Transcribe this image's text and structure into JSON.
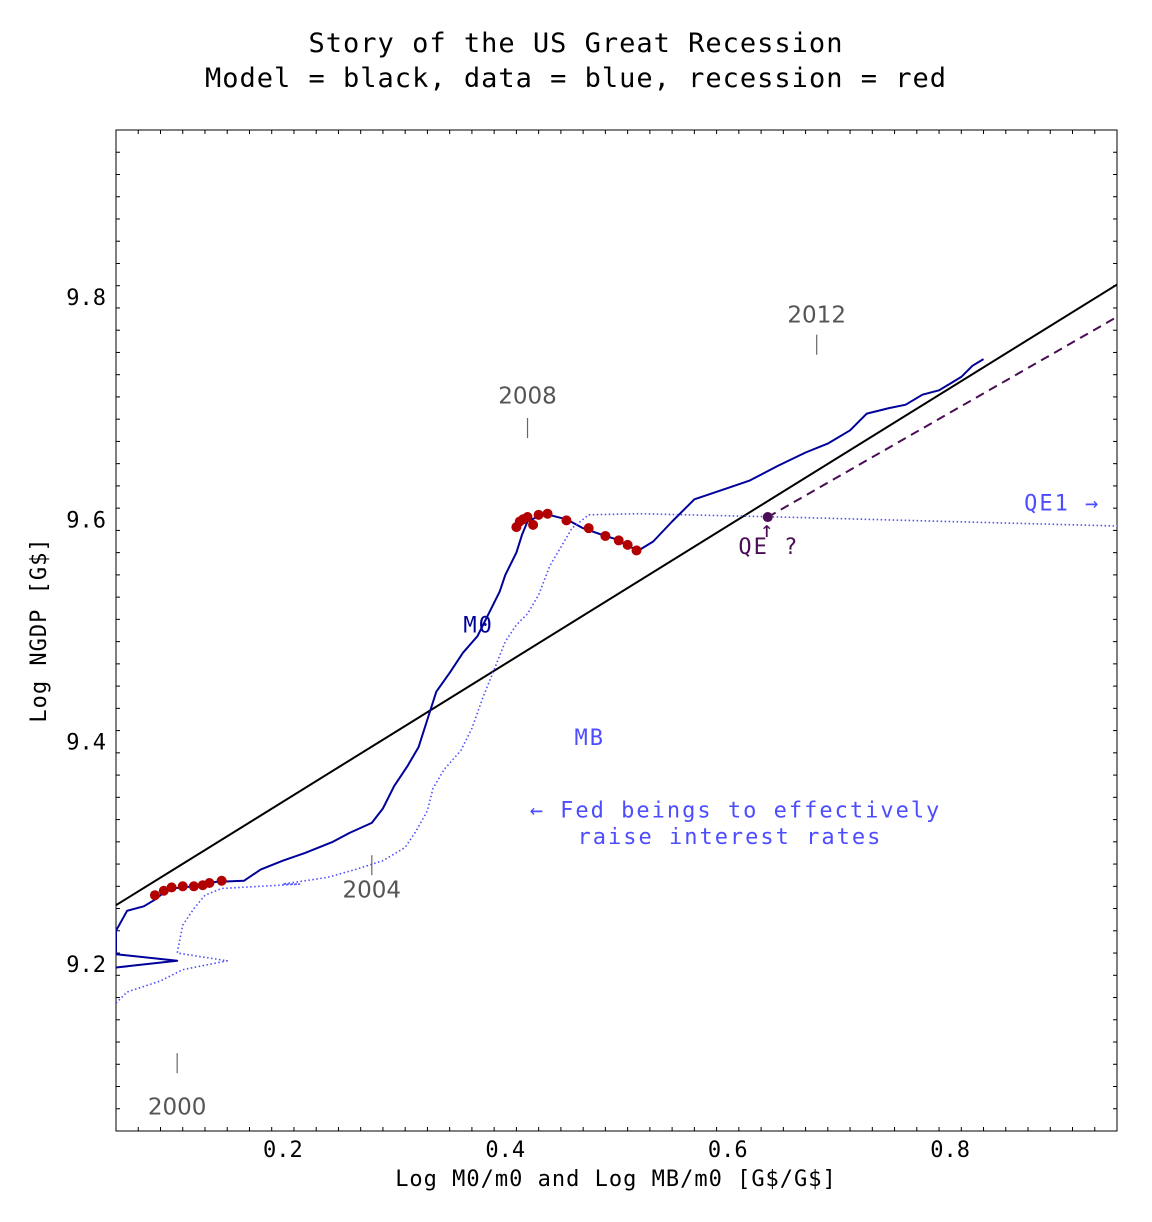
{
  "title_line1": "Story of the US Great Recession",
  "title_line2": "Model = black, data = blue, recession = red",
  "chart_data": {
    "type": "line",
    "xlabel": "Log M0/m0 and Log MB/m0 [G$/G$]",
    "ylabel": "Log NGDP [G$]",
    "xlim": [
      0.05,
      0.95
    ],
    "ylim": [
      9.05,
      9.95
    ],
    "x_ticks": [
      0.2,
      0.4,
      0.6,
      0.8
    ],
    "x_tick_labels": [
      "0.2",
      "0.4",
      "0.6",
      "0.8"
    ],
    "y_ticks": [
      9.2,
      9.4,
      9.6,
      9.8
    ],
    "y_tick_labels": [
      "9.2",
      "9.4",
      "9.6",
      "9.8"
    ],
    "grid": false,
    "colors": {
      "model": "#000000",
      "m0": "#00009a",
      "mb": "#4d4dff",
      "recession": "#b20000",
      "qe": "#4b0d55",
      "year": "#555555"
    },
    "series": [
      {
        "key": "model",
        "name": "Model",
        "style": "solid",
        "points": [
          [
            0.05,
            9.253
          ],
          [
            0.95,
            9.811
          ]
        ]
      },
      {
        "key": "m0",
        "name": "M0",
        "style": "solid",
        "points": [
          [
            0.05,
            9.197
          ],
          [
            0.105,
            9.203
          ],
          [
            0.05,
            9.209
          ],
          [
            0.05,
            9.23
          ],
          [
            0.06,
            9.248
          ],
          [
            0.075,
            9.252
          ],
          [
            0.085,
            9.258
          ],
          [
            0.09,
            9.262
          ],
          [
            0.1,
            9.268
          ],
          [
            0.12,
            9.27
          ],
          [
            0.14,
            9.274
          ],
          [
            0.165,
            9.275
          ],
          [
            0.18,
            9.285
          ],
          [
            0.2,
            9.293
          ],
          [
            0.22,
            9.3
          ],
          [
            0.245,
            9.31
          ],
          [
            0.26,
            9.318
          ],
          [
            0.28,
            9.327
          ],
          [
            0.29,
            9.34
          ],
          [
            0.3,
            9.36
          ],
          [
            0.312,
            9.378
          ],
          [
            0.322,
            9.395
          ],
          [
            0.33,
            9.42
          ],
          [
            0.338,
            9.445
          ],
          [
            0.35,
            9.462
          ],
          [
            0.362,
            9.48
          ],
          [
            0.375,
            9.495
          ],
          [
            0.385,
            9.515
          ],
          [
            0.395,
            9.535
          ],
          [
            0.4,
            9.55
          ],
          [
            0.41,
            9.57
          ],
          [
            0.415,
            9.586
          ],
          [
            0.42,
            9.598
          ],
          [
            0.435,
            9.605
          ],
          [
            0.455,
            9.6
          ],
          [
            0.47,
            9.592
          ],
          [
            0.49,
            9.585
          ],
          [
            0.5,
            9.582
          ],
          [
            0.51,
            9.576
          ],
          [
            0.52,
            9.572
          ],
          [
            0.533,
            9.58
          ],
          [
            0.55,
            9.598
          ],
          [
            0.57,
            9.618
          ],
          [
            0.6,
            9.628
          ],
          [
            0.62,
            9.635
          ],
          [
            0.645,
            9.648
          ],
          [
            0.67,
            9.66
          ],
          [
            0.69,
            9.668
          ],
          [
            0.71,
            9.68
          ],
          [
            0.725,
            9.695
          ],
          [
            0.745,
            9.7
          ],
          [
            0.76,
            9.703
          ],
          [
            0.775,
            9.712
          ],
          [
            0.79,
            9.716
          ],
          [
            0.8,
            9.722
          ],
          [
            0.81,
            9.728
          ],
          [
            0.82,
            9.738
          ],
          [
            0.83,
            9.744
          ]
        ]
      },
      {
        "key": "mb",
        "name": "MB",
        "style": "dotted",
        "points": [
          [
            0.05,
            9.165
          ],
          [
            0.06,
            9.175
          ],
          [
            0.09,
            9.185
          ],
          [
            0.11,
            9.195
          ],
          [
            0.15,
            9.203
          ],
          [
            0.105,
            9.21
          ],
          [
            0.11,
            9.235
          ],
          [
            0.12,
            9.25
          ],
          [
            0.13,
            9.262
          ],
          [
            0.145,
            9.268
          ],
          [
            0.18,
            9.27
          ],
          [
            0.215,
            9.272
          ],
          [
            0.2,
            9.272
          ],
          [
            0.24,
            9.278
          ],
          [
            0.265,
            9.285
          ],
          [
            0.29,
            9.293
          ],
          [
            0.31,
            9.305
          ],
          [
            0.32,
            9.32
          ],
          [
            0.33,
            9.338
          ],
          [
            0.335,
            9.358
          ],
          [
            0.345,
            9.375
          ],
          [
            0.36,
            9.392
          ],
          [
            0.37,
            9.412
          ],
          [
            0.38,
            9.44
          ],
          [
            0.39,
            9.465
          ],
          [
            0.4,
            9.49
          ],
          [
            0.41,
            9.505
          ],
          [
            0.42,
            9.515
          ],
          [
            0.43,
            9.532
          ],
          [
            0.44,
            9.558
          ],
          [
            0.45,
            9.575
          ],
          [
            0.46,
            9.592
          ],
          [
            0.475,
            9.604
          ],
          [
            0.52,
            9.605
          ],
          [
            0.65,
            9.602
          ],
          [
            0.95,
            9.594
          ]
        ]
      },
      {
        "key": "qe",
        "name": "QE ?",
        "style": "dashed",
        "points": [
          [
            0.636,
            9.602
          ],
          [
            0.95,
            9.782
          ]
        ]
      }
    ],
    "recession_points": [
      [
        0.085,
        9.262
      ],
      [
        0.093,
        9.266
      ],
      [
        0.1,
        9.269
      ],
      [
        0.11,
        9.27
      ],
      [
        0.12,
        9.27
      ],
      [
        0.128,
        9.271
      ],
      [
        0.134,
        9.273
      ],
      [
        0.145,
        9.275
      ],
      [
        0.41,
        9.593
      ],
      [
        0.413,
        9.598
      ],
      [
        0.416,
        9.6
      ],
      [
        0.42,
        9.602
      ],
      [
        0.425,
        9.595
      ],
      [
        0.43,
        9.604
      ],
      [
        0.438,
        9.605
      ],
      [
        0.455,
        9.599
      ],
      [
        0.475,
        9.592
      ],
      [
        0.49,
        9.585
      ],
      [
        0.502,
        9.581
      ],
      [
        0.51,
        9.577
      ],
      [
        0.518,
        9.572
      ]
    ],
    "qe_point": [
      0.636,
      9.602
    ],
    "year_markers": [
      {
        "label": "2000",
        "x": 0.105,
        "y_tick": [
          9.12,
          9.102
        ],
        "y_text": 9.065
      },
      {
        "label": "2004",
        "x": 0.28,
        "y_tick": [
          9.298,
          9.28
        ],
        "y_text": 9.26
      },
      {
        "label": "2008",
        "x": 0.42,
        "y_tick": [
          9.673,
          9.691
        ],
        "y_text": 9.704
      },
      {
        "label": "2012",
        "x": 0.68,
        "y_tick": [
          9.748,
          9.766
        ],
        "y_text": 9.777
      }
    ],
    "annotations": [
      {
        "key": "m0",
        "text": "M0",
        "x": 0.376,
        "y": 9.498,
        "anchor": "middle"
      },
      {
        "key": "mb",
        "text": "MB",
        "x": 0.476,
        "y": 9.397,
        "anchor": "middle"
      },
      {
        "key": "qe1",
        "text": "QE1 →",
        "x": 0.935,
        "y": 9.608,
        "anchor": "end"
      },
      {
        "key": "qe",
        "text": "QE ?",
        "x": 0.637,
        "y": 9.569,
        "anchor": "middle"
      },
      {
        "key": "qe_arrow",
        "text": "↑",
        "x": 0.636,
        "y": 9.584,
        "anchor": "middle"
      },
      {
        "key": "fed1",
        "text": "← Fed beings to effectively",
        "x": 0.607,
        "y": 9.332,
        "anchor": "middle"
      },
      {
        "key": "fed2",
        "text": "raise interest rates",
        "x": 0.602,
        "y": 9.308,
        "anchor": "middle"
      }
    ]
  }
}
